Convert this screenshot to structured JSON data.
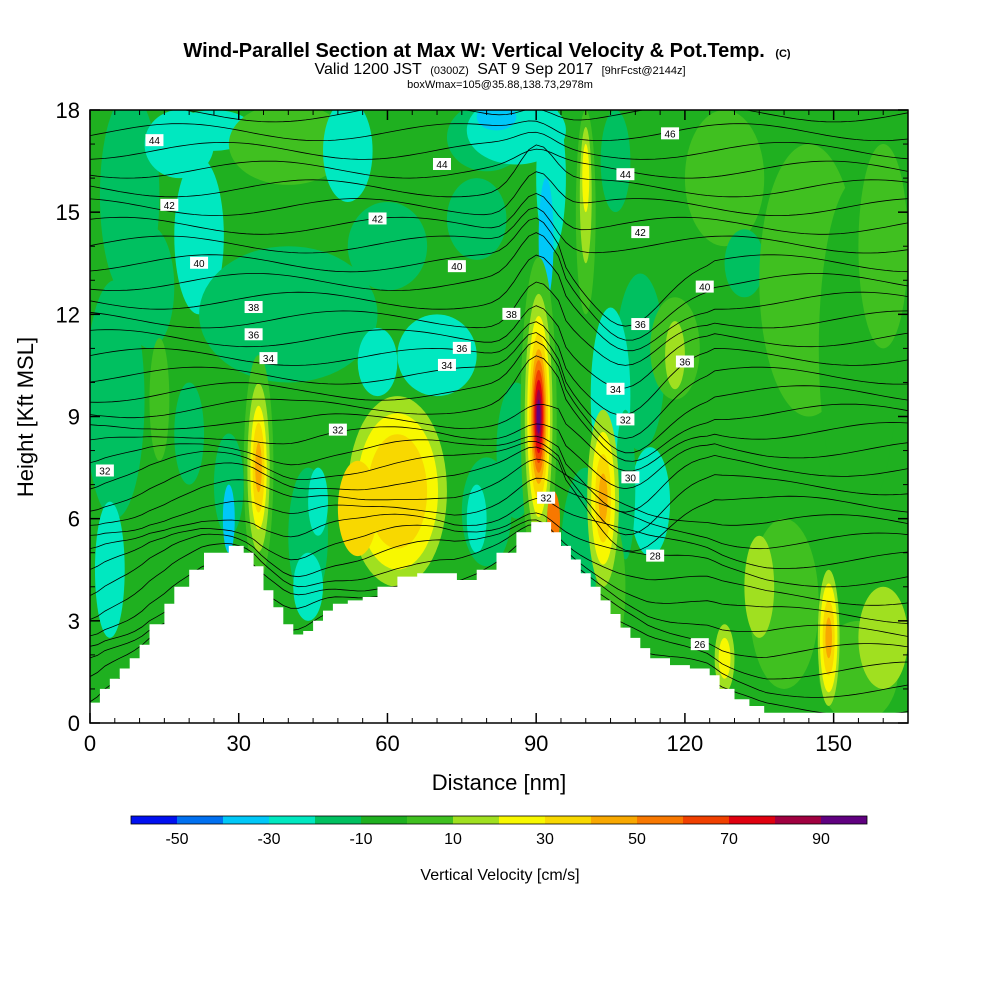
{
  "title": {
    "main": "Wind-Parallel Section at Max W: Vertical Velocity & Pot.Temp.",
    "main_unit": "(C)",
    "valid_prefix": "Valid 1200 JST",
    "valid_utc": "(0300Z)",
    "valid_date": "SAT 9 Sep 2017",
    "fcst": "[9hrFcst@2144z]",
    "box": "boxWmax=105@35.88,138.73,2978m"
  },
  "chart_data": {
    "type": "heatmap",
    "xlabel": "Distance [nm]",
    "ylabel": "Height [Kft MSL]",
    "xlim": [
      0,
      165
    ],
    "ylim": [
      0,
      18
    ],
    "x_ticks": [
      0,
      30,
      60,
      90,
      120,
      150
    ],
    "y_ticks": [
      0,
      3,
      6,
      9,
      12,
      15,
      18
    ],
    "x_tick_labels": [
      "0",
      "30",
      "60",
      "90",
      "120",
      "150"
    ],
    "y_tick_labels": [
      "0",
      "3",
      "6",
      "9",
      "12",
      "15",
      "18"
    ],
    "colorbar": {
      "label": "Vertical Velocity [cm/s]",
      "boundaries": [
        -60,
        -50,
        -40,
        -30,
        -20,
        -10,
        0,
        10,
        20,
        30,
        40,
        50,
        60,
        70,
        80,
        90,
        100
      ],
      "colors": [
        "#0010f0",
        "#0070f0",
        "#00c8f8",
        "#00e8c0",
        "#00c060",
        "#1fb020",
        "#40c020",
        "#a0e020",
        "#f8f800",
        "#f8d800",
        "#f8a800",
        "#f87800",
        "#f04000",
        "#e00010",
        "#a00040",
        "#600080"
      ],
      "tick_values": [
        -50,
        -30,
        -10,
        10,
        30,
        50,
        70,
        90
      ],
      "tick_labels": [
        "-50",
        "-30",
        "-10",
        "10",
        "30",
        "50",
        "70",
        "90"
      ]
    },
    "terrain": [
      [
        0,
        0.6
      ],
      [
        1,
        0.6
      ],
      [
        2,
        1.0
      ],
      [
        4,
        1.3
      ],
      [
        6,
        1.6
      ],
      [
        8,
        1.9
      ],
      [
        10,
        2.3
      ],
      [
        12,
        2.9
      ],
      [
        15,
        3.5
      ],
      [
        17,
        4.0
      ],
      [
        20,
        4.5
      ],
      [
        23,
        5.0
      ],
      [
        28,
        5.2
      ],
      [
        31,
        5.0
      ],
      [
        33,
        4.6
      ],
      [
        35,
        3.9
      ],
      [
        37,
        3.4
      ],
      [
        39,
        2.9
      ],
      [
        41,
        2.6
      ],
      [
        43,
        2.7
      ],
      [
        45,
        3.0
      ],
      [
        47,
        3.3
      ],
      [
        49,
        3.5
      ],
      [
        52,
        3.6
      ],
      [
        55,
        3.7
      ],
      [
        58,
        4.0
      ],
      [
        62,
        4.3
      ],
      [
        66,
        4.4
      ],
      [
        70,
        4.4
      ],
      [
        74,
        4.2
      ],
      [
        78,
        4.5
      ],
      [
        82,
        5.0
      ],
      [
        86,
        5.6
      ],
      [
        89,
        5.9
      ],
      [
        91,
        5.9
      ],
      [
        93,
        5.6
      ],
      [
        95,
        5.2
      ],
      [
        97,
        4.8
      ],
      [
        99,
        4.4
      ],
      [
        101,
        4.0
      ],
      [
        103,
        3.6
      ],
      [
        105,
        3.2
      ],
      [
        107,
        2.8
      ],
      [
        109,
        2.5
      ],
      [
        111,
        2.2
      ],
      [
        113,
        1.9
      ],
      [
        117,
        1.7
      ],
      [
        121,
        1.6
      ],
      [
        125,
        1.4
      ],
      [
        127,
        1.0
      ],
      [
        130,
        0.7
      ],
      [
        133,
        0.5
      ],
      [
        136,
        0.3
      ],
      [
        165,
        0.3
      ]
    ],
    "isentrope_labels": [
      {
        "x": 13,
        "y": 17.1,
        "text": "44"
      },
      {
        "x": 71,
        "y": 16.4,
        "text": "44"
      },
      {
        "x": 117,
        "y": 17.3,
        "text": "46"
      },
      {
        "x": 108,
        "y": 16.1,
        "text": "44"
      },
      {
        "x": 16,
        "y": 15.2,
        "text": "42"
      },
      {
        "x": 58,
        "y": 14.8,
        "text": "42"
      },
      {
        "x": 111,
        "y": 14.4,
        "text": "42"
      },
      {
        "x": 22,
        "y": 13.5,
        "text": "40"
      },
      {
        "x": 74,
        "y": 13.4,
        "text": "40"
      },
      {
        "x": 124,
        "y": 12.8,
        "text": "40"
      },
      {
        "x": 33,
        "y": 12.2,
        "text": "38"
      },
      {
        "x": 85,
        "y": 12.0,
        "text": "38"
      },
      {
        "x": 33,
        "y": 11.4,
        "text": "36"
      },
      {
        "x": 75,
        "y": 11.0,
        "text": "36"
      },
      {
        "x": 111,
        "y": 11.7,
        "text": "36"
      },
      {
        "x": 120,
        "y": 10.6,
        "text": "36"
      },
      {
        "x": 36,
        "y": 10.7,
        "text": "34"
      },
      {
        "x": 72,
        "y": 10.5,
        "text": "34"
      },
      {
        "x": 106,
        "y": 9.8,
        "text": "34"
      },
      {
        "x": 108,
        "y": 8.9,
        "text": "32"
      },
      {
        "x": 50,
        "y": 8.6,
        "text": "32"
      },
      {
        "x": 3,
        "y": 7.4,
        "text": "32"
      },
      {
        "x": 92,
        "y": 6.6,
        "text": "32"
      },
      {
        "x": 109,
        "y": 7.2,
        "text": "30"
      },
      {
        "x": 114,
        "y": 4.9,
        "text": "28"
      },
      {
        "x": 123,
        "y": 2.3,
        "text": "26"
      }
    ]
  }
}
